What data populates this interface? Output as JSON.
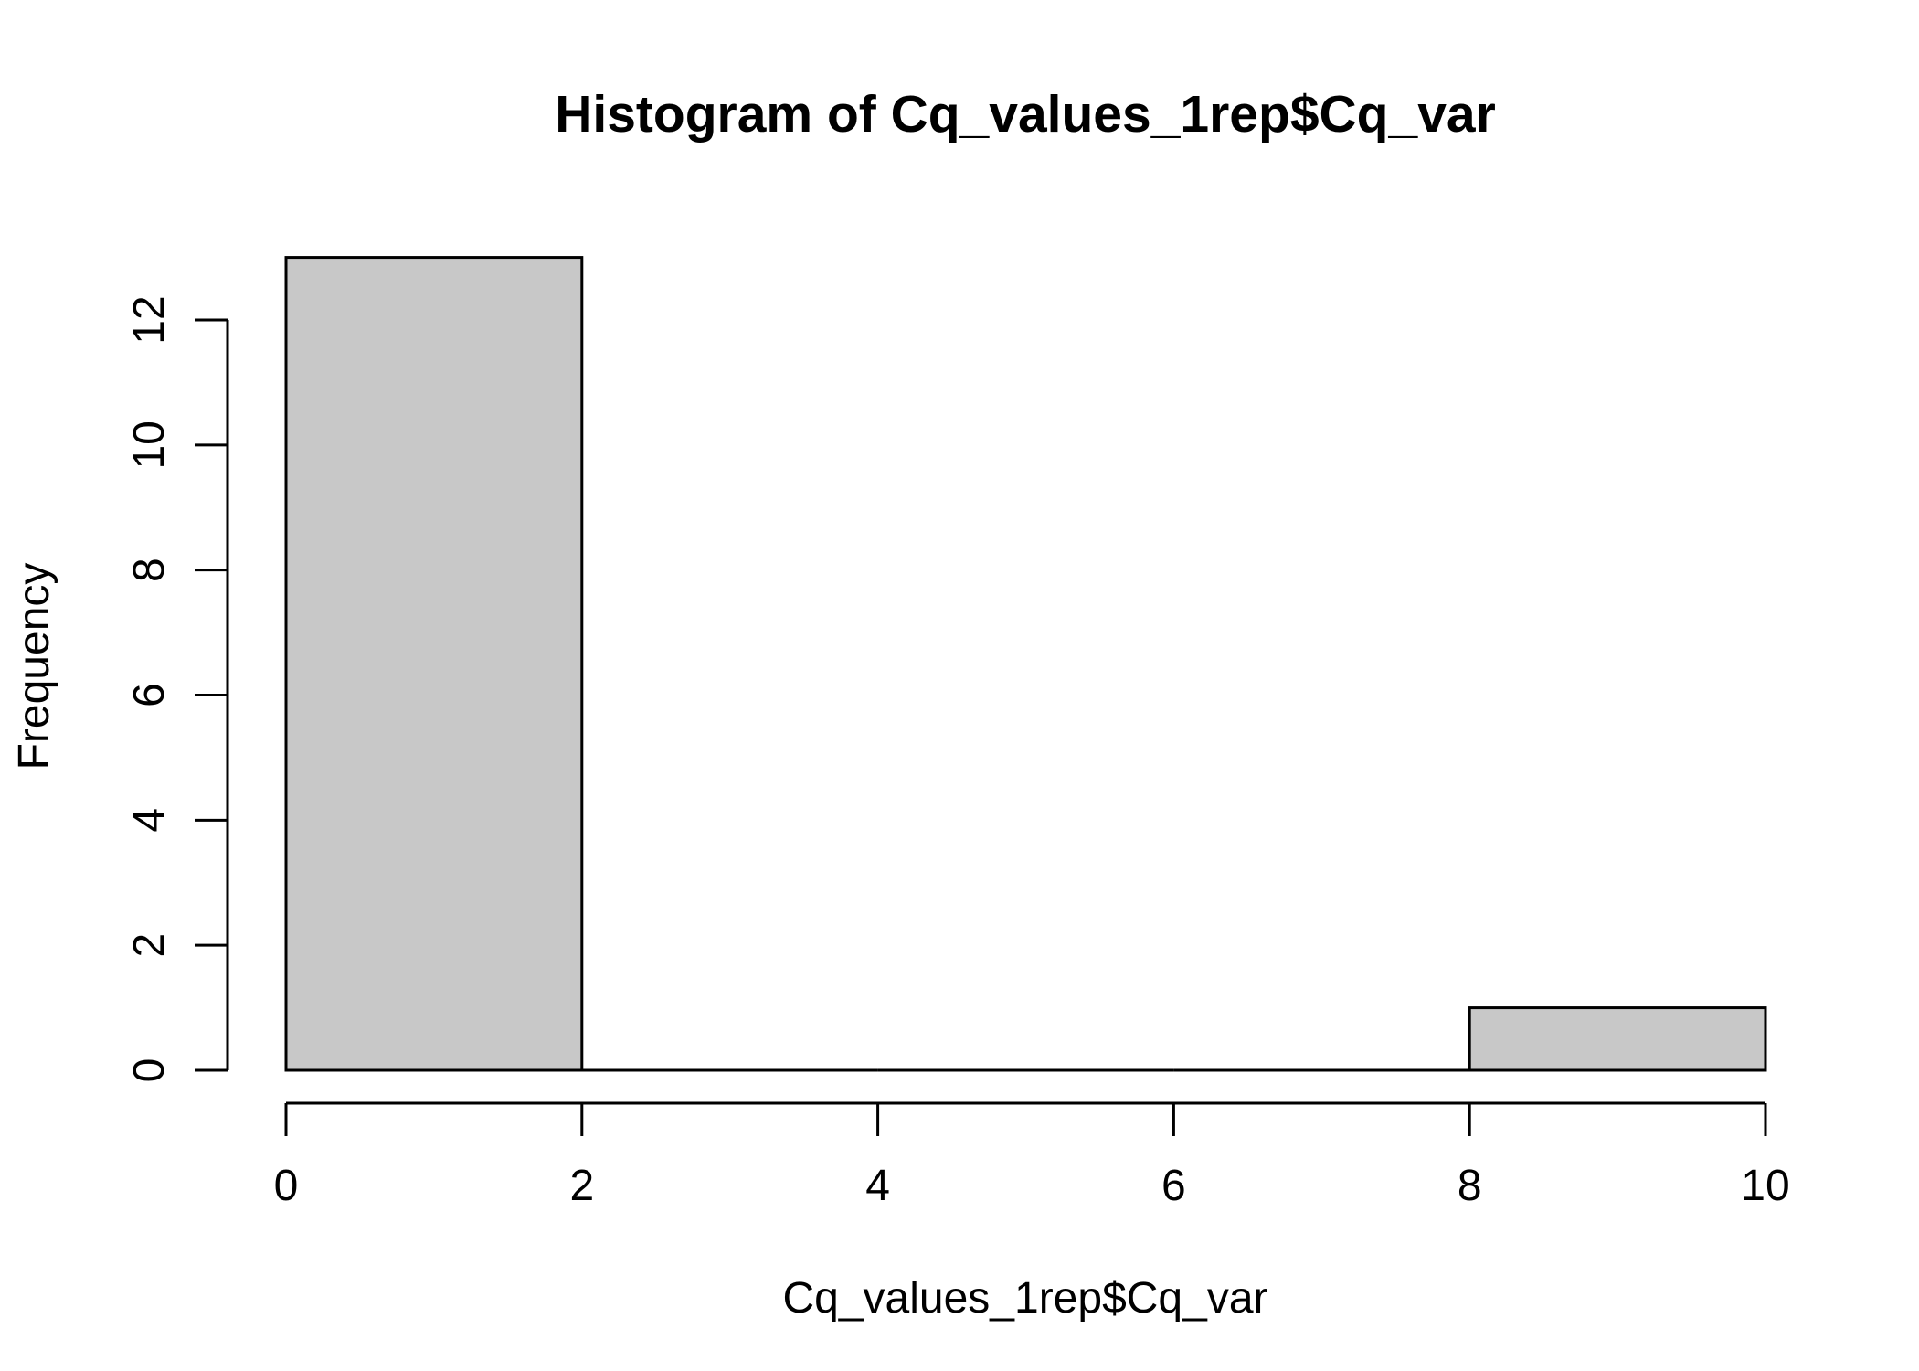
{
  "chart_data": {
    "type": "bar",
    "title": "Histogram of Cq_values_1rep$Cq_var",
    "xlabel": "Cq_values_1rep$Cq_var",
    "ylabel": "Frequency",
    "bins": [
      {
        "start": 0,
        "end": 2,
        "count": 13
      },
      {
        "start": 2,
        "end": 4,
        "count": 0
      },
      {
        "start": 4,
        "end": 6,
        "count": 0
      },
      {
        "start": 6,
        "end": 8,
        "count": 0
      },
      {
        "start": 8,
        "end": 10,
        "count": 1
      }
    ],
    "xlim": [
      0,
      10
    ],
    "ylim": [
      0,
      12
    ],
    "x_ticks": [
      0,
      2,
      4,
      6,
      8,
      10
    ],
    "y_ticks": [
      0,
      2,
      4,
      6,
      8,
      10,
      12
    ],
    "x_tick_labels": [
      "0",
      "2",
      "4",
      "6",
      "8",
      "10"
    ],
    "y_tick_labels": [
      "0",
      "2",
      "4",
      "6",
      "8",
      "10",
      "12"
    ],
    "bar_color": "#c8c8c8",
    "grid": false,
    "legend": "none"
  }
}
